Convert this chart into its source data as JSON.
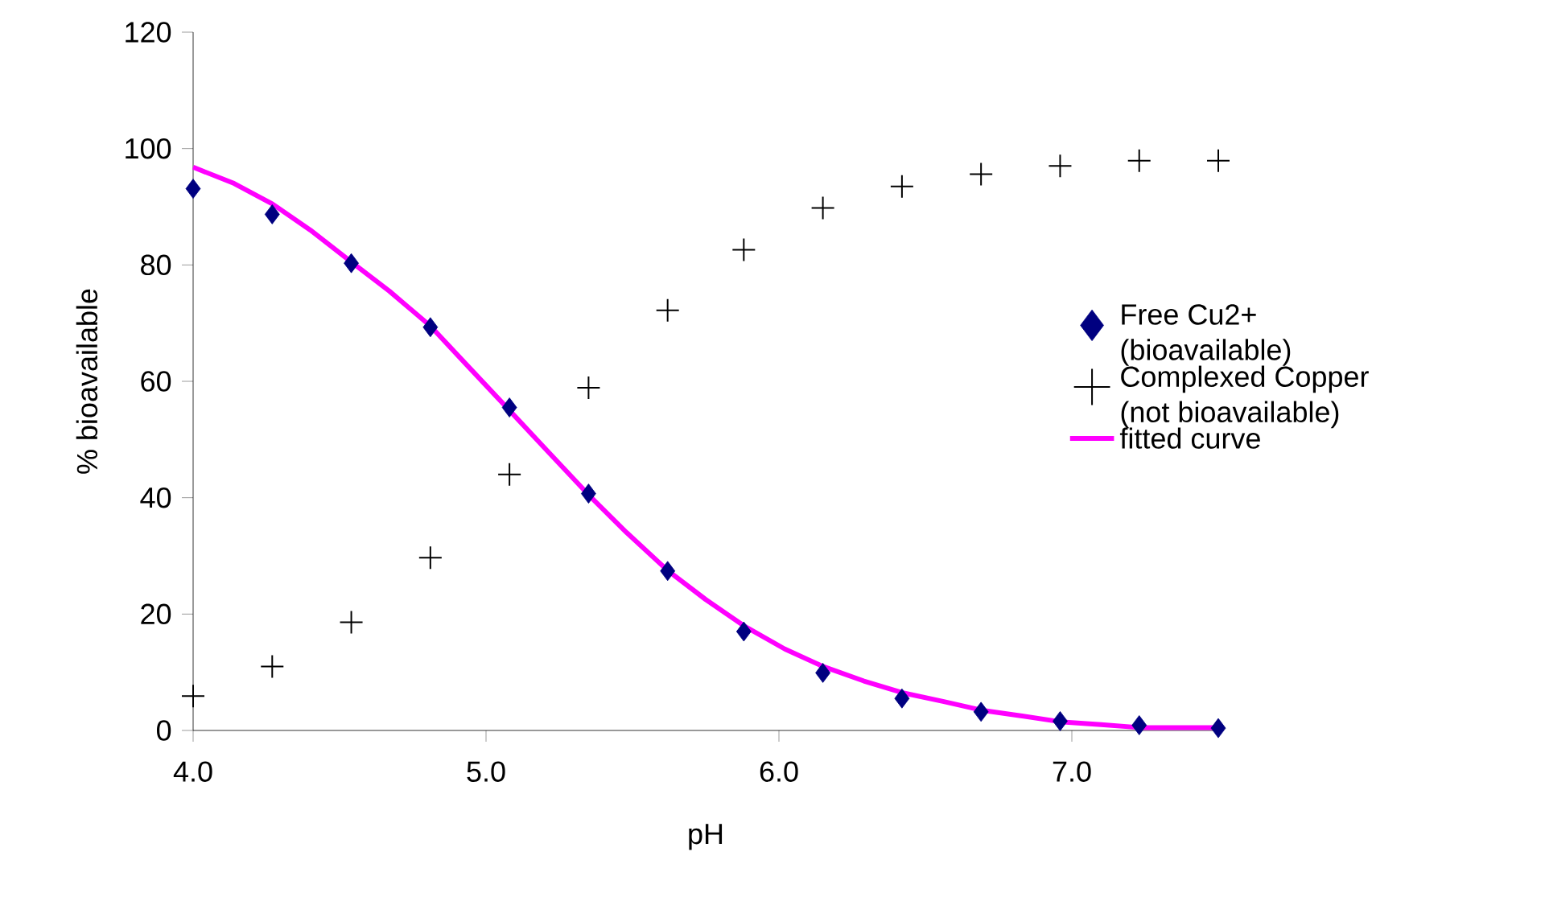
{
  "chart_data": {
    "type": "scatter",
    "xlabel": "pH",
    "ylabel": "% bioavailable",
    "xlim": [
      4,
      7.5
    ],
    "ylim": [
      0,
      120
    ],
    "xticks": [
      {
        "value": 4,
        "label": "4.0"
      },
      {
        "value": 5,
        "label": "5.0"
      },
      {
        "value": 6,
        "label": "6.0"
      },
      {
        "value": 7,
        "label": "7.0"
      }
    ],
    "yticks": [
      0,
      20,
      40,
      60,
      80,
      100,
      120
    ],
    "grid": false,
    "legend": "right",
    "series": [
      {
        "name": " Free Cu2+ (bioavailable)",
        "marker": "diamond",
        "color": "#000080",
        "x": [
          4.0,
          4.27,
          4.54,
          4.81,
          5.08,
          5.35,
          5.62,
          5.88,
          6.15,
          6.42,
          6.69,
          6.96,
          7.23,
          7.5
        ],
        "values": [
          93.1,
          88.7,
          80.3,
          69.3,
          55.5,
          40.7,
          27.4,
          17.0,
          9.9,
          5.5,
          3.2,
          1.6,
          0.9,
          0.4
        ]
      },
      {
        "name": "Complexed Copper (not bioavailable)",
        "marker": "cross",
        "color": "#000000",
        "x": [
          4.0,
          4.27,
          4.54,
          4.81,
          5.08,
          5.35,
          5.62,
          5.88,
          6.15,
          6.42,
          6.69,
          6.96,
          7.23,
          7.5
        ],
        "values": [
          5.9,
          11.0,
          18.6,
          29.7,
          44.0,
          58.9,
          72.2,
          82.6,
          89.8,
          93.5,
          95.6,
          97.0,
          97.9,
          97.9
        ]
      },
      {
        "name": "fitted curve",
        "type": "line",
        "marker": "none",
        "line_style": "solid",
        "color": "#ff00ff",
        "x": [
          4.0,
          4.14,
          4.27,
          4.4,
          4.54,
          4.67,
          4.81,
          4.94,
          5.08,
          5.21,
          5.35,
          5.48,
          5.62,
          5.75,
          5.88,
          6.02,
          6.15,
          6.29,
          6.42,
          6.56,
          6.69,
          6.83,
          6.96,
          7.1,
          7.23,
          7.37,
          7.5
        ],
        "values": [
          96.8,
          94.0,
          90.5,
          86.0,
          80.5,
          75.5,
          69.5,
          62.5,
          55.0,
          48.0,
          40.5,
          34.0,
          27.5,
          22.5,
          18.0,
          14.0,
          11.0,
          8.5,
          6.5,
          5.0,
          3.5,
          2.5,
          1.5,
          1.0,
          0.5,
          0.5,
          0.5
        ]
      }
    ]
  }
}
